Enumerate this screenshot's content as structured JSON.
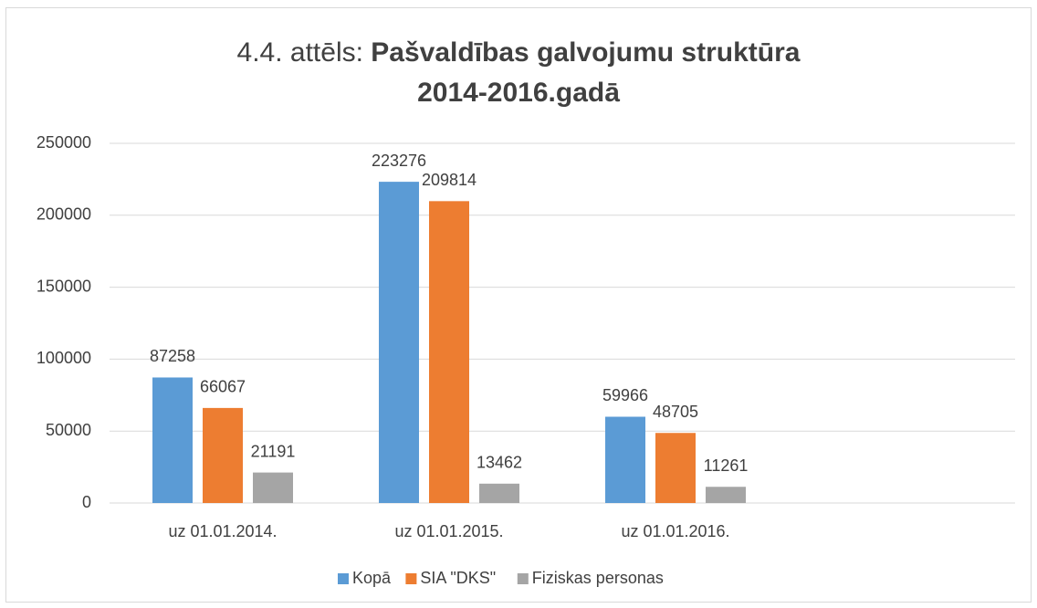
{
  "chart_data": {
    "type": "bar",
    "title": [
      "4.4. attēls:",
      "Pašvaldības galvojumu struktūra 2014-2016.gadā"
    ],
    "categories": [
      "uz 01.01.2014.",
      "uz 01.01.2015.",
      "uz 01.01.2016.",
      null
    ],
    "series": [
      {
        "name": "Kopā",
        "color": "#5b9bd5",
        "values": [
          87258,
          223276,
          59966,
          null
        ]
      },
      {
        "name": "SIA \"DKS\"",
        "color": "#ed7d31",
        "values": [
          66067,
          209814,
          48705,
          null
        ]
      },
      {
        "name": "Fiziskas personas",
        "color": "#a5a5a5",
        "values": [
          21191,
          13462,
          11261,
          null
        ]
      }
    ],
    "ylim": [
      0,
      250000
    ],
    "yticks": [
      0,
      50000,
      100000,
      150000,
      200000,
      250000
    ],
    "grid": true,
    "legend": "bottom"
  }
}
